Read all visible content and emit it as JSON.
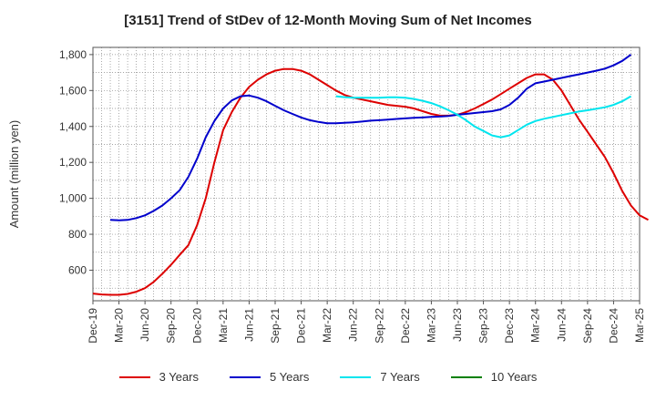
{
  "chart_data": {
    "type": "line",
    "title": "[3151]  Trend of StDev of 12-Month Moving Sum of Net Incomes",
    "ylabel": "Amount (million yen)",
    "xlabel": "",
    "ylim": [
      430,
      1840
    ],
    "yticks": [
      600,
      800,
      1000,
      1200,
      1400,
      1600,
      1800
    ],
    "ytick_labels": [
      "600",
      "800",
      "1,000",
      "1,200",
      "1,400",
      "1,600",
      "1,800"
    ],
    "xtick_labels": [
      "Dec-19",
      "Mar-20",
      "Jun-20",
      "Sep-20",
      "Dec-20",
      "Mar-21",
      "Jun-21",
      "Sep-21",
      "Dec-21",
      "Mar-22",
      "Jun-22",
      "Sep-22",
      "Dec-22",
      "Mar-23",
      "Jun-23",
      "Sep-23",
      "Dec-23",
      "Mar-24",
      "Jun-24",
      "Sep-24",
      "Dec-24",
      "Mar-25"
    ],
    "grid": true,
    "legend_position": "bottom",
    "series": [
      {
        "name": "3 Years",
        "color": "#dd0000",
        "start_index": 0,
        "values": [
          470,
          465,
          463,
          463,
          468,
          480,
          500,
          535,
          580,
          630,
          685,
          740,
          850,
          1000,
          1200,
          1380,
          1480,
          1560,
          1620,
          1660,
          1690,
          1710,
          1720,
          1720,
          1710,
          1690,
          1660,
          1630,
          1600,
          1575,
          1560,
          1550,
          1540,
          1530,
          1520,
          1515,
          1510,
          1500,
          1485,
          1470,
          1460,
          1460,
          1465,
          1480,
          1500,
          1525,
          1550,
          1580,
          1610,
          1640,
          1670,
          1690,
          1690,
          1660,
          1600,
          1520,
          1440,
          1370,
          1300,
          1230,
          1140,
          1040,
          960,
          905,
          880
        ]
      },
      {
        "name": "5 Years",
        "color": "#0000cc",
        "start_index": 2,
        "values": [
          880,
          878,
          880,
          890,
          905,
          930,
          960,
          1000,
          1045,
          1120,
          1220,
          1340,
          1430,
          1500,
          1545,
          1568,
          1572,
          1560,
          1540,
          1515,
          1490,
          1470,
          1450,
          1435,
          1425,
          1418,
          1418,
          1420,
          1423,
          1427,
          1432,
          1435,
          1438,
          1442,
          1445,
          1448,
          1450,
          1453,
          1455,
          1458,
          1465,
          1470,
          1475,
          1480,
          1485,
          1495,
          1520,
          1560,
          1610,
          1640,
          1650,
          1660,
          1670,
          1680,
          1690,
          1700,
          1710,
          1722,
          1740,
          1765,
          1800
        ]
      },
      {
        "name": "7 Years",
        "color": "#00e5ee",
        "start_index": 28,
        "values": [
          1568,
          1563,
          1560,
          1560,
          1560,
          1560,
          1562,
          1562,
          1560,
          1553,
          1543,
          1530,
          1512,
          1490,
          1465,
          1435,
          1400,
          1375,
          1350,
          1340,
          1350,
          1380,
          1410,
          1430,
          1443,
          1453,
          1463,
          1473,
          1483,
          1490,
          1498,
          1507,
          1520,
          1540,
          1568
        ]
      },
      {
        "name": "10 Years",
        "color": "#008000",
        "start_index": 0,
        "values": []
      }
    ]
  }
}
